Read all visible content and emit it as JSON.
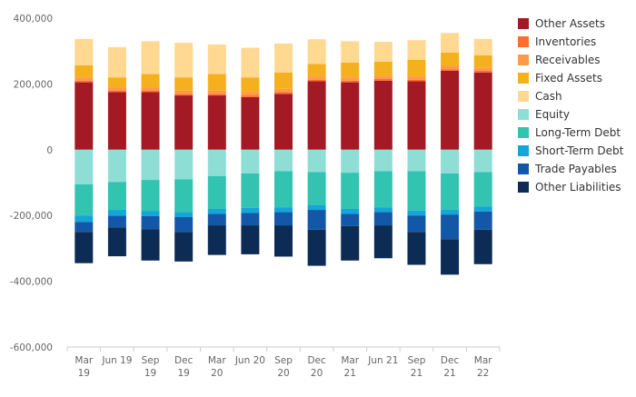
{
  "chart_data": {
    "type": "bar",
    "stacked": true,
    "categories": [
      "Mar 19",
      "Jun 19",
      "Sep 19",
      "Dec 19",
      "Mar 20",
      "Jun 20",
      "Sep 20",
      "Dec 20",
      "Mar 21",
      "Jun 21",
      "Sep 21",
      "Dec 21",
      "Mar 22"
    ],
    "y_ticks": [
      "400,000",
      "200,000",
      "0",
      "-200,000",
      "-400,000",
      "-600,000"
    ],
    "ylim": [
      -600000,
      400000
    ],
    "grid": false,
    "legend_position": "right",
    "series": [
      {
        "name": "Other Assets",
        "color": "#a31a24",
        "values": [
          205000,
          175000,
          175000,
          165000,
          165000,
          160000,
          170000,
          208000,
          205000,
          210000,
          208000,
          240000,
          235000
        ]
      },
      {
        "name": "Inventories",
        "color": "#ff6e2e",
        "values": [
          5000,
          5000,
          5000,
          5000,
          5000,
          5000,
          5000,
          5000,
          5000,
          5000,
          5000,
          5000,
          5000
        ]
      },
      {
        "name": "Receivables",
        "color": "#ff9a4a",
        "values": [
          10000,
          10000,
          10000,
          10000,
          10000,
          10000,
          10000,
          10000,
          10000,
          10000,
          10000,
          10000,
          10000
        ]
      },
      {
        "name": "Fixed Assets",
        "color": "#f5b01e",
        "values": [
          37000,
          30000,
          40000,
          40000,
          50000,
          45000,
          50000,
          38000,
          45000,
          43000,
          50000,
          40000,
          37000
        ]
      },
      {
        "name": "Cash",
        "color": "#ffd891",
        "values": [
          80000,
          92000,
          100000,
          105000,
          90000,
          90000,
          88000,
          75000,
          65000,
          60000,
          60000,
          60000,
          50000
        ]
      },
      {
        "name": "Equity",
        "color": "#8fded6",
        "values": [
          -105000,
          -98000,
          -92000,
          -90000,
          -80000,
          -72000,
          -65000,
          -68000,
          -70000,
          -65000,
          -65000,
          -72000,
          -68000
        ]
      },
      {
        "name": "Long-Term Debt",
        "color": "#32c3b1",
        "values": [
          -95000,
          -85000,
          -95000,
          -100000,
          -100000,
          -105000,
          -110000,
          -100000,
          -110000,
          -110000,
          -120000,
          -110000,
          -105000
        ]
      },
      {
        "name": "Short-Term Debt",
        "color": "#13a6d6",
        "values": [
          -20000,
          -18000,
          -15000,
          -15000,
          -15000,
          -15000,
          -15000,
          -15000,
          -15000,
          -15000,
          -15000,
          -15000,
          -15000
        ]
      },
      {
        "name": "Trade Payables",
        "color": "#1358a8",
        "values": [
          -30000,
          -35000,
          -40000,
          -45000,
          -35000,
          -38000,
          -40000,
          -60000,
          -37000,
          -40000,
          -50000,
          -75000,
          -55000
        ]
      },
      {
        "name": "Other Liabilities",
        "color": "#0c2c55",
        "values": [
          -95000,
          -88000,
          -95000,
          -90000,
          -90000,
          -88000,
          -95000,
          -110000,
          -105000,
          -100000,
          -100000,
          -108000,
          -105000
        ]
      }
    ]
  }
}
